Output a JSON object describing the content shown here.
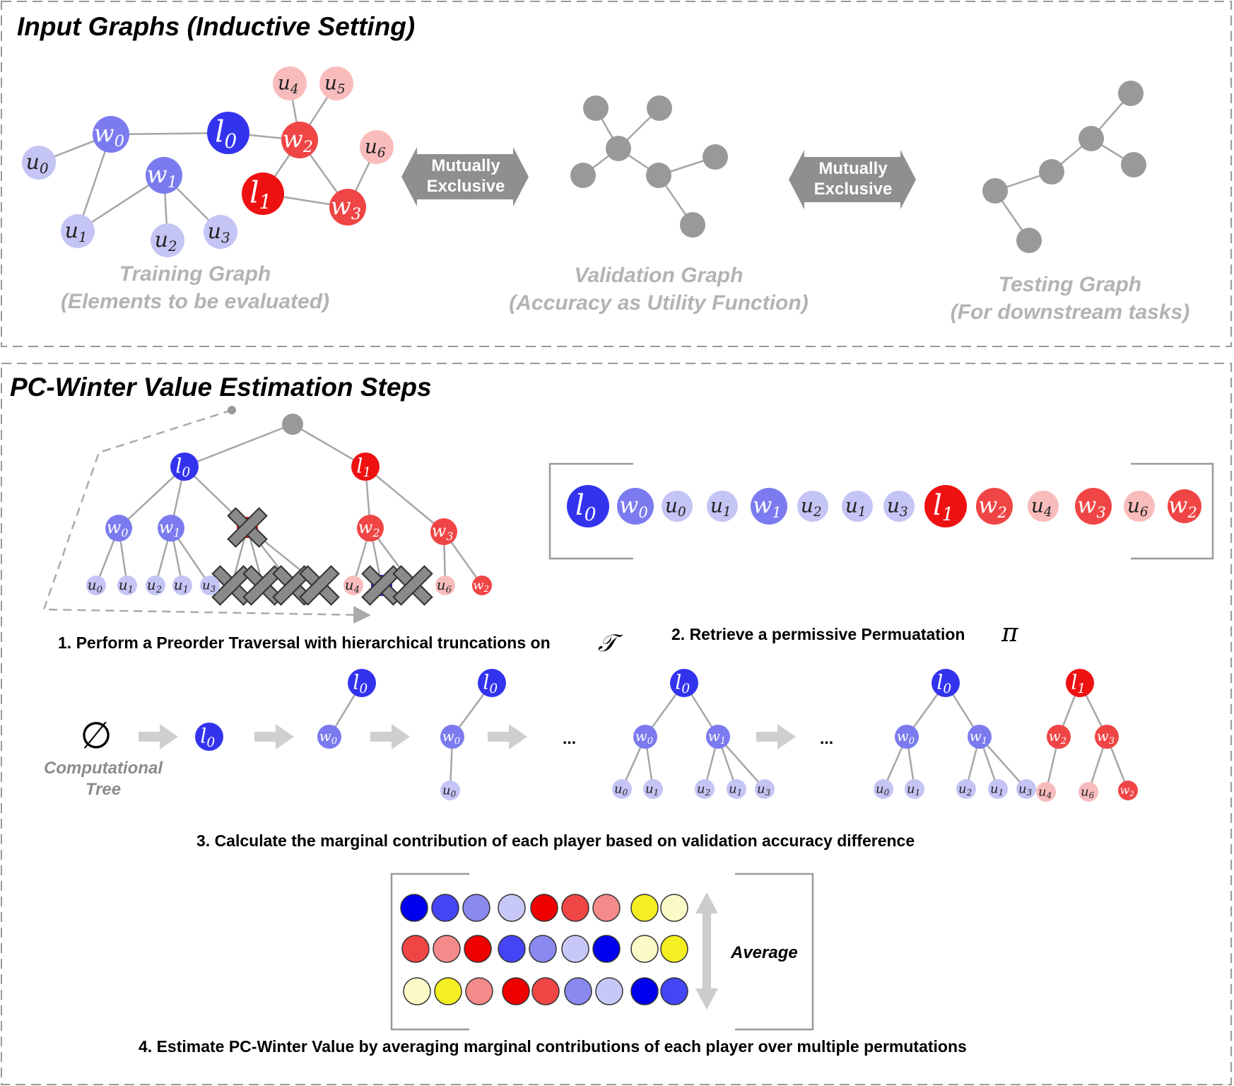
{
  "colors": {
    "l_dark": "#3333ee",
    "w_blue": "#7b7bef",
    "u_blue": "#c4c4f5",
    "l_red": "#ee1111",
    "w_red": "#f04545",
    "u_red": "#f9bcbc",
    "gray_node": "#999999",
    "yellow": "#f4ef22",
    "pale_yellow": "#fbfbc8"
  },
  "sections": {
    "input_title": "Input Graphs (Inductive Setting)",
    "steps_title": "PC-Winter Value Estimation Steps"
  },
  "graphs": {
    "training_caption_1": "Training Graph",
    "training_caption_2": "(Elements to be evaluated)",
    "validation_caption_1": "Validation Graph",
    "validation_caption_2": "(Accuracy as Utility Function)",
    "testing_caption_1": "Testing Graph",
    "testing_caption_2": "(For downstream tasks)",
    "exclusive_line_1": "Mutually",
    "exclusive_line_2": "Exclusive"
  },
  "steps": {
    "step1": "1. Perform a Preorder Traversal with hierarchical truncations on",
    "step1_symbol": "𝒯",
    "step2": "2. Retrieve a permissive Permuatation",
    "step2_symbol": "π",
    "step3": "3. Calculate the marginal contribution of each player based on validation accuracy difference",
    "step4": "4. Estimate PC-Winter Value by averaging marginal contributions of each player over multiple permutations"
  },
  "tree_sequence": {
    "empty_symbol": "∅",
    "label_1": "Computational",
    "label_2": "Tree",
    "ellipsis": "..."
  },
  "average_label": "Average",
  "permutation": [
    {
      "t": "l",
      "s": "0",
      "c": "l_dark"
    },
    {
      "t": "w",
      "s": "0",
      "c": "w_blue"
    },
    {
      "t": "u",
      "s": "0",
      "c": "u_blue"
    },
    {
      "t": "u",
      "s": "1",
      "c": "u_blue"
    },
    {
      "t": "w",
      "s": "1",
      "c": "w_blue"
    },
    {
      "t": "u",
      "s": "2",
      "c": "u_blue"
    },
    {
      "t": "u",
      "s": "1",
      "c": "u_blue"
    },
    {
      "t": "u",
      "s": "3",
      "c": "u_blue"
    },
    {
      "t": "l",
      "s": "1",
      "c": "l_red"
    },
    {
      "t": "w",
      "s": "2",
      "c": "w_red"
    },
    {
      "t": "u",
      "s": "4",
      "c": "u_red"
    },
    {
      "t": "w",
      "s": "3",
      "c": "w_red"
    },
    {
      "t": "u",
      "s": "6",
      "c": "u_red"
    },
    {
      "t": "w",
      "s": "2",
      "c": "w_red"
    }
  ],
  "contribution_rows": [
    [
      "#0000ee",
      "#4545f5",
      "#8989f0",
      "#c8c8f8",
      "#ee0000",
      "#f04545",
      "#f48a8a",
      "#f4ef22",
      "#fbfbc8"
    ],
    [
      "#f04545",
      "#f48a8a",
      "#ee0000",
      "#4545f5",
      "#8989f0",
      "#c8c8f8",
      "#0000ee",
      "#fbfbc8",
      "#f4ef22"
    ],
    [
      "#fbfbc8",
      "#f4ef22",
      "#f48a8a",
      "#ee0000",
      "#f04545",
      "#8989f0",
      "#c8c8f8",
      "#0000ee",
      "#4545f5"
    ]
  ]
}
